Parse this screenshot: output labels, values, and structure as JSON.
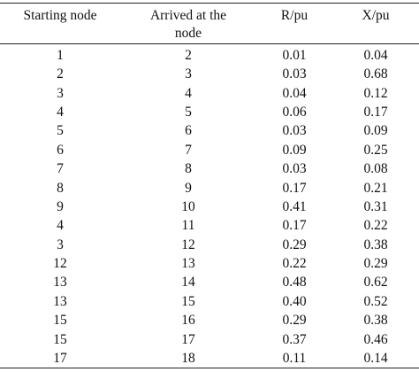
{
  "table": {
    "header": [
      "Starting node",
      "Arrived at the node",
      "R/pu",
      "X/pu"
    ],
    "rows": [
      [
        "1",
        "2",
        "0.01",
        "0.04"
      ],
      [
        "2",
        "3",
        "0.03",
        "0.68"
      ],
      [
        "3",
        "4",
        "0.04",
        "0.12"
      ],
      [
        "4",
        "5",
        "0.06",
        "0.17"
      ],
      [
        "5",
        "6",
        "0.03",
        "0.09"
      ],
      [
        "6",
        "7",
        "0.09",
        "0.25"
      ],
      [
        "7",
        "8",
        "0.03",
        "0.08"
      ],
      [
        "8",
        "9",
        "0.17",
        "0.21"
      ],
      [
        "9",
        "10",
        "0.41",
        "0.31"
      ],
      [
        "4",
        "11",
        "0.17",
        "0.22"
      ],
      [
        "3",
        "12",
        "0.29",
        "0.38"
      ],
      [
        "12",
        "13",
        "0.22",
        "0.29"
      ],
      [
        "13",
        "14",
        "0.48",
        "0.62"
      ],
      [
        "13",
        "15",
        "0.40",
        "0.52"
      ],
      [
        "15",
        "16",
        "0.29",
        "0.38"
      ],
      [
        "15",
        "17",
        "0.37",
        "0.46"
      ],
      [
        "17",
        "18",
        "0.11",
        "0.14"
      ]
    ]
  }
}
